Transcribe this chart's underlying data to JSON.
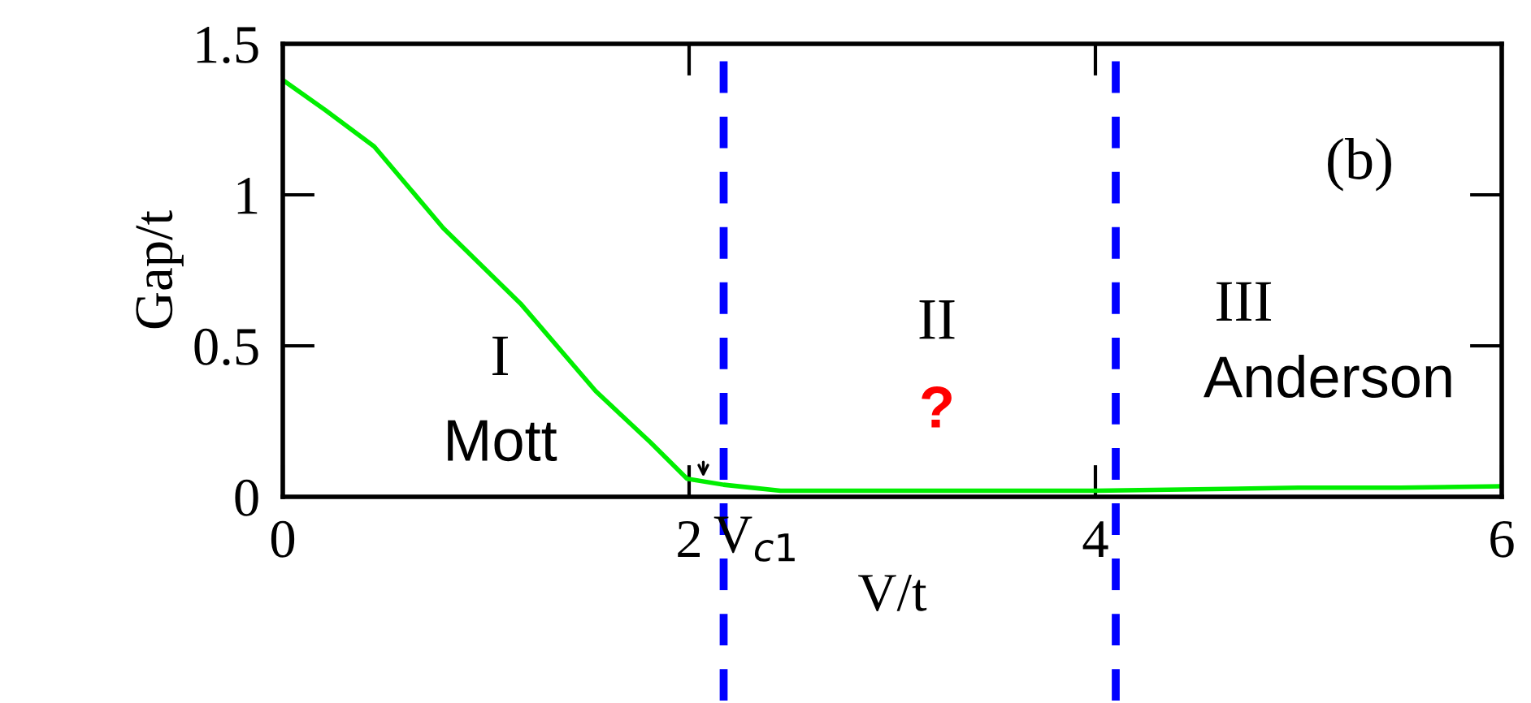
{
  "chart_data": {
    "type": "line",
    "xlabel": "V/t",
    "ylabel": "Gap/t",
    "x": [
      0,
      0.21,
      0.45,
      0.79,
      1.17,
      1.54,
      1.81,
      1.99,
      2.17,
      2.45,
      3.0,
      3.5,
      4.0,
      4.5,
      5.0,
      5.5,
      6.0
    ],
    "series": [
      {
        "color": "#00ee00",
        "values": [
          1.38,
          1.28,
          1.16,
          0.89,
          0.64,
          0.35,
          0.18,
          0.06,
          0.04,
          0.02,
          0.02,
          0.02,
          0.02,
          0.025,
          0.03,
          0.03,
          0.035
        ]
      }
    ],
    "xlim": [
      0,
      6
    ],
    "ylim": [
      0,
      1.5
    ],
    "xticks": [
      0,
      2,
      4,
      6
    ],
    "yticks": [
      0,
      0.5,
      1,
      1.5
    ],
    "ref_lines": [
      {
        "axis": "x",
        "value": 2.17,
        "label": "V$_{c1}$",
        "color": "#0000ff",
        "line_style": "dashed"
      },
      {
        "axis": "x",
        "value": 4.1,
        "color": "#0000ff",
        "line_style": "dashed"
      }
    ],
    "annotations": [
      "(b)",
      "I",
      "Mott",
      "II",
      "?",
      "III",
      "Anderson"
    ],
    "grid": false,
    "legend": false
  }
}
